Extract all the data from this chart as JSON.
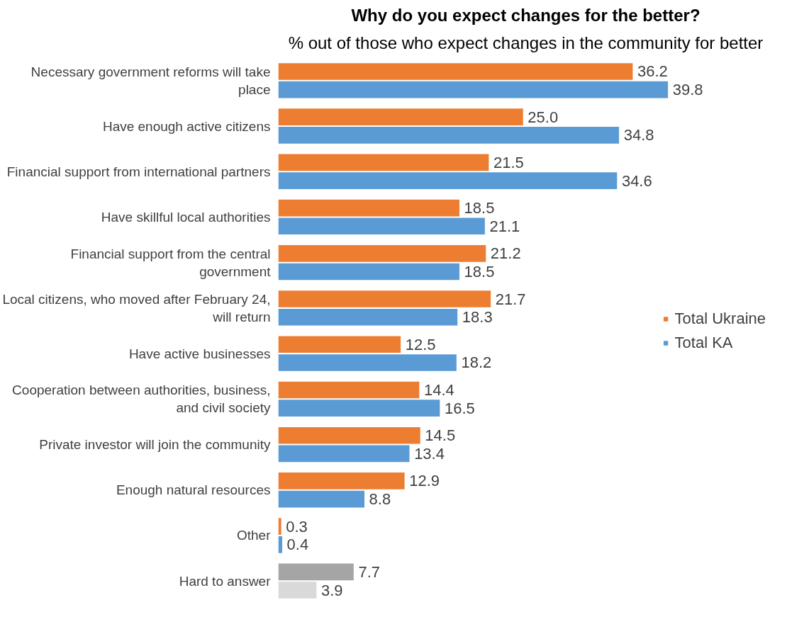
{
  "chart_data": {
    "type": "bar",
    "orientation": "horizontal",
    "title": "Why do you expect changes for the better?",
    "subtitle": "% out of those who expect changes in the community for better",
    "categories": [
      "Necessary government reforms will take\nplace",
      "Have enough active citizens",
      "Financial support from international partners",
      "Have skillful local authorities",
      "Financial support from the central\ngovernment",
      "Local citizens, who moved after February 24,\nwill return",
      "Have active businesses",
      "Cooperation between authorities, business,\nand civil society",
      "Private investor will join the community",
      "Enough natural resources",
      "Other",
      "Hard to answer"
    ],
    "series": [
      {
        "name": "Total Ukraine",
        "color": "#ed7d31",
        "colors": [
          "#ed7d31",
          "#ed7d31",
          "#ed7d31",
          "#ed7d31",
          "#ed7d31",
          "#ed7d31",
          "#ed7d31",
          "#ed7d31",
          "#ed7d31",
          "#ed7d31",
          "#ed7d31",
          "#a5a5a5"
        ],
        "values": [
          36.2,
          25.0,
          21.5,
          18.5,
          21.2,
          21.7,
          12.5,
          14.4,
          14.5,
          12.9,
          0.3,
          7.7
        ],
        "value_labels": [
          "36.2",
          "25.0",
          "21.5",
          "18.5",
          "21.2",
          "21.7",
          "12.5",
          "14.4",
          "14.5",
          "12.9",
          "0.3",
          "7.7"
        ]
      },
      {
        "name": "Total KA",
        "color": "#5b9bd5",
        "colors": [
          "#5b9bd5",
          "#5b9bd5",
          "#5b9bd5",
          "#5b9bd5",
          "#5b9bd5",
          "#5b9bd5",
          "#5b9bd5",
          "#5b9bd5",
          "#5b9bd5",
          "#5b9bd5",
          "#5b9bd5",
          "#d9d9d9"
        ],
        "values": [
          39.8,
          34.8,
          34.6,
          21.1,
          18.5,
          18.3,
          18.2,
          16.5,
          13.4,
          8.8,
          0.4,
          3.9
        ],
        "value_labels": [
          "39.8",
          "34.8",
          "34.6",
          "21.1",
          "18.5",
          "18.3",
          "18.2",
          "16.5",
          "13.4",
          "8.8",
          "0.4",
          "3.9"
        ]
      }
    ],
    "legend": "right",
    "grid": false
  }
}
